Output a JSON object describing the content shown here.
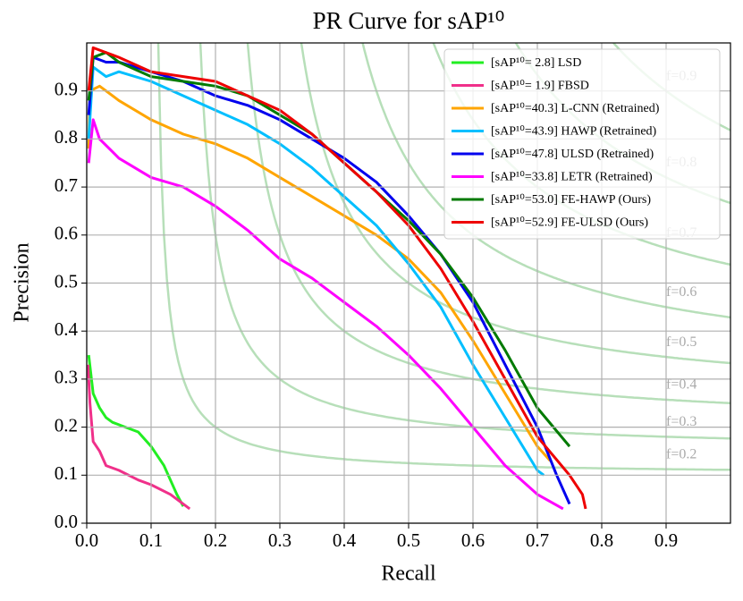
{
  "chart_data": {
    "type": "line",
    "title": "PR Curve for sAP¹⁰",
    "x_label": "Recall",
    "y_label": "Precision",
    "xlim": [
      0,
      1
    ],
    "ylim": [
      0,
      1
    ],
    "xticks": [
      {
        "value": 0,
        "label": "0.0"
      },
      0.1,
      0.2,
      0.3,
      0.4,
      0.5,
      0.6,
      0.7,
      0.8,
      0.9
    ],
    "yticks": [
      {
        "value": 0,
        "label": "0.0"
      },
      0.1,
      0.2,
      0.3,
      0.4,
      0.5,
      0.6,
      0.7,
      0.8,
      0.9
    ],
    "grid": true,
    "legend": "upper right",
    "iso_f": [
      {
        "value": 0.2,
        "label": "f=0.2"
      },
      {
        "value": 0.3,
        "label": "f=0.3"
      },
      {
        "value": 0.4,
        "label": "f=0.4"
      },
      {
        "value": 0.5,
        "label": "f=0.5"
      },
      {
        "value": 0.6,
        "label": "f=0.6"
      },
      {
        "value": 0.7,
        "label": "f=0.7"
      },
      {
        "value": 0.8,
        "label": "f=0.8"
      },
      {
        "value": 0.9,
        "label": "f=0.9"
      }
    ],
    "series": [
      {
        "name": "[sAP¹⁰= 2.8] LSD",
        "color": "#22ee22",
        "x": [
          0.003,
          0.01,
          0.02,
          0.03,
          0.04,
          0.06,
          0.08,
          0.1,
          0.12,
          0.14,
          0.15
        ],
        "values": [
          0.35,
          0.27,
          0.24,
          0.22,
          0.21,
          0.2,
          0.19,
          0.16,
          0.12,
          0.06,
          0.035
        ]
      },
      {
        "name": "[sAP¹⁰= 1.9] FBSD",
        "color": "#f0308a",
        "x": [
          0.002,
          0.005,
          0.01,
          0.02,
          0.03,
          0.05,
          0.08,
          0.1,
          0.13,
          0.16
        ],
        "values": [
          0.33,
          0.25,
          0.17,
          0.15,
          0.12,
          0.11,
          0.09,
          0.08,
          0.06,
          0.03
        ]
      },
      {
        "name": "[sAP¹⁰=40.3] L-CNN (Retrained)",
        "color": "#ffa500",
        "x": [
          0.003,
          0.005,
          0.02,
          0.05,
          0.1,
          0.15,
          0.2,
          0.25,
          0.3,
          0.35,
          0.4,
          0.45,
          0.5,
          0.55,
          0.6,
          0.65,
          0.7,
          0.72
        ],
        "values": [
          0.78,
          0.9,
          0.91,
          0.88,
          0.84,
          0.81,
          0.79,
          0.76,
          0.72,
          0.68,
          0.64,
          0.6,
          0.55,
          0.48,
          0.38,
          0.27,
          0.16,
          0.13
        ]
      },
      {
        "name": "[sAP¹⁰=43.9] HAWP (Retrained)",
        "color": "#00bfff",
        "x": [
          0.003,
          0.01,
          0.03,
          0.05,
          0.1,
          0.15,
          0.2,
          0.25,
          0.3,
          0.35,
          0.4,
          0.45,
          0.5,
          0.55,
          0.6,
          0.65,
          0.7,
          0.71
        ],
        "values": [
          0.8,
          0.95,
          0.93,
          0.94,
          0.92,
          0.89,
          0.86,
          0.83,
          0.79,
          0.74,
          0.68,
          0.62,
          0.54,
          0.45,
          0.33,
          0.22,
          0.11,
          0.1
        ]
      },
      {
        "name": "[sAP¹⁰=47.8] ULSD (Retrained)",
        "color": "#0000ee",
        "x": [
          0.003,
          0.01,
          0.03,
          0.05,
          0.1,
          0.15,
          0.2,
          0.25,
          0.3,
          0.35,
          0.4,
          0.45,
          0.5,
          0.55,
          0.6,
          0.65,
          0.7,
          0.73,
          0.75
        ],
        "values": [
          0.85,
          0.97,
          0.96,
          0.96,
          0.94,
          0.92,
          0.89,
          0.87,
          0.84,
          0.8,
          0.76,
          0.71,
          0.64,
          0.56,
          0.46,
          0.33,
          0.2,
          0.1,
          0.04
        ]
      },
      {
        "name": "[sAP¹⁰=33.8] LETR (Retrained)",
        "color": "#ff00ff",
        "x": [
          0.003,
          0.01,
          0.02,
          0.05,
          0.1,
          0.15,
          0.2,
          0.25,
          0.3,
          0.35,
          0.4,
          0.45,
          0.5,
          0.55,
          0.6,
          0.65,
          0.7,
          0.74
        ],
        "values": [
          0.75,
          0.84,
          0.8,
          0.76,
          0.72,
          0.7,
          0.66,
          0.61,
          0.55,
          0.51,
          0.46,
          0.41,
          0.35,
          0.28,
          0.2,
          0.12,
          0.06,
          0.03
        ]
      },
      {
        "name": "[sAP¹⁰=53.0] FE-HAWP (Ours)",
        "color": "#007a00",
        "x": [
          0.003,
          0.01,
          0.03,
          0.05,
          0.1,
          0.15,
          0.2,
          0.25,
          0.3,
          0.35,
          0.4,
          0.45,
          0.5,
          0.55,
          0.6,
          0.65,
          0.7,
          0.75
        ],
        "values": [
          0.88,
          0.97,
          0.98,
          0.96,
          0.93,
          0.92,
          0.91,
          0.89,
          0.85,
          0.81,
          0.75,
          0.69,
          0.63,
          0.56,
          0.47,
          0.36,
          0.24,
          0.16
        ]
      },
      {
        "name": "[sAP¹⁰=52.9] FE-ULSD (Ours)",
        "color": "#ee0000",
        "x": [
          0.003,
          0.01,
          0.05,
          0.1,
          0.15,
          0.2,
          0.25,
          0.3,
          0.35,
          0.4,
          0.45,
          0.5,
          0.55,
          0.6,
          0.65,
          0.7,
          0.75,
          0.77,
          0.775
        ],
        "values": [
          0.9,
          0.99,
          0.97,
          0.94,
          0.93,
          0.92,
          0.89,
          0.86,
          0.81,
          0.75,
          0.69,
          0.62,
          0.53,
          0.42,
          0.3,
          0.18,
          0.1,
          0.06,
          0.03
        ]
      }
    ]
  }
}
